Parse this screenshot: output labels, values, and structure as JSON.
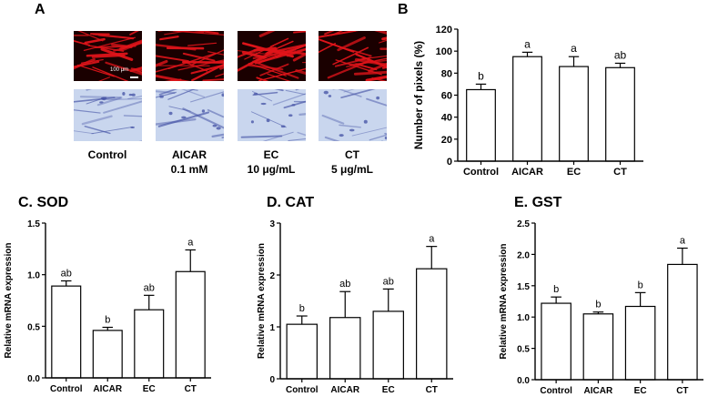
{
  "panel_a": {
    "letter": "A",
    "scale_bar_label": "100 μm",
    "conditions": [
      {
        "name": "Control",
        "dose": ""
      },
      {
        "name": "AICAR",
        "dose": "0.1 mM"
      },
      {
        "name": "EC",
        "dose": "10 μg/mL"
      },
      {
        "name": "CT",
        "dose": "5 μg/mL"
      }
    ],
    "image_colors": {
      "fluorescence_bg": "#1a0000",
      "fluorescence_fiber": "#e0141a",
      "stain_bg": "#c9d6ee",
      "stain_fiber": "#4a58a8"
    }
  },
  "chart_data": [
    {
      "id": "B",
      "type": "bar",
      "title": "B",
      "categories": [
        "Control",
        "AICAR",
        "EC",
        "CT"
      ],
      "values": [
        65,
        95,
        86,
        85
      ],
      "errors": [
        5,
        4,
        9,
        4
      ],
      "annotations": [
        "b",
        "a",
        "a",
        "ab"
      ],
      "xlabel": "",
      "ylabel": "Number of pixels (%)",
      "ylim": [
        0,
        120
      ],
      "yticks": [
        "0",
        "20",
        "40",
        "60",
        "80",
        "100",
        "120"
      ],
      "grid": false,
      "bar_color": "#ffffff"
    },
    {
      "id": "C",
      "type": "bar",
      "title": "C. SOD",
      "categories": [
        "Control",
        "AICAR",
        "EC",
        "CT"
      ],
      "values": [
        0.89,
        0.46,
        0.66,
        1.03
      ],
      "errors": [
        0.05,
        0.03,
        0.14,
        0.21
      ],
      "annotations": [
        "ab",
        "b",
        "ab",
        "a"
      ],
      "xlabel": "",
      "ylabel": "Relative mRNA expression",
      "ylim": [
        0,
        1.5
      ],
      "yticks": [
        "0.0",
        "0.5",
        "1.0",
        "1.5"
      ],
      "grid": false,
      "bar_color": "#ffffff"
    },
    {
      "id": "D",
      "type": "bar",
      "title": "D. CAT",
      "categories": [
        "Control",
        "AICAR",
        "EC",
        "CT"
      ],
      "values": [
        1.05,
        1.18,
        1.3,
        2.12
      ],
      "errors": [
        0.16,
        0.5,
        0.43,
        0.43
      ],
      "annotations": [
        "b",
        "ab",
        "ab",
        "a"
      ],
      "xlabel": "",
      "ylabel": "Relative mRNA expression",
      "ylim": [
        0,
        3
      ],
      "yticks": [
        "0",
        "1",
        "2",
        "3"
      ],
      "grid": false,
      "bar_color": "#ffffff"
    },
    {
      "id": "E",
      "type": "bar",
      "title": "E. GST",
      "categories": [
        "Control",
        "AICAR",
        "EC",
        "CT"
      ],
      "values": [
        1.22,
        1.05,
        1.17,
        1.84
      ],
      "errors": [
        0.1,
        0.03,
        0.22,
        0.26
      ],
      "annotations": [
        "b",
        "b",
        "b",
        "a"
      ],
      "xlabel": "",
      "ylabel": "Relative mRNA expression",
      "ylim": [
        0,
        2.5
      ],
      "yticks": [
        "0.0",
        "0.5",
        "1.0",
        "1.5",
        "2.0",
        "2.5"
      ],
      "grid": false,
      "bar_color": "#ffffff"
    }
  ]
}
